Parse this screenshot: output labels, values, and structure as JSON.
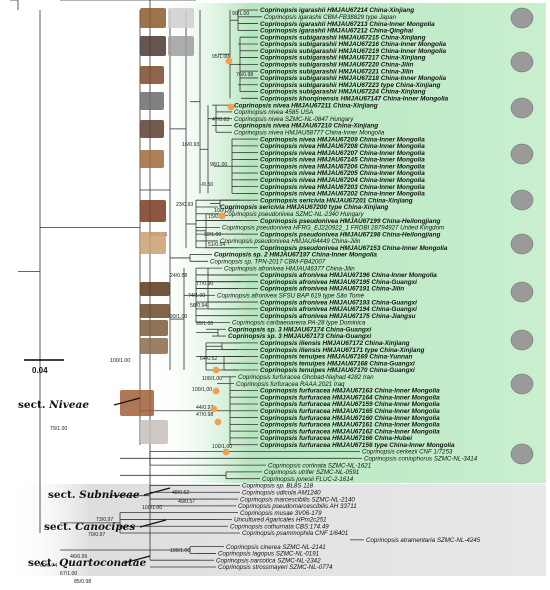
{
  "figure": {
    "scale_bar_label": "0.04",
    "colors": {
      "niveae_band": "#b8e6c0",
      "niveae_band_edge": "#d6f2dc",
      "grey_band": "#dcdcdc",
      "node_marker": "#f0a050",
      "branch": "#333333"
    },
    "sections": [
      {
        "prefix": "sect. ",
        "name": "Niveae"
      },
      {
        "prefix": "sect. ",
        "name": "Subniveae"
      },
      {
        "prefix": "sect. ",
        "name": "Canocipes"
      },
      {
        "prefix": "sect. ",
        "name": "Quartoconatae"
      }
    ],
    "taxa": [
      {
        "label": "Coprinopsis igarashii HMJAU67214 China-Xinjiang",
        "bold": true
      },
      {
        "label": "Coprinopsis igarashii CBM-FB38829 type Japan",
        "bold": false
      },
      {
        "label": "Coprinopsis igarashii HMJAU67213 China-Inner Mongolia",
        "bold": true
      },
      {
        "label": "Coprinopsis igarashii HMJAU67212 China-Qinghai",
        "bold": true
      },
      {
        "label": "Coprinopsis subigarashii HMJAU67215 China-Xinjiang",
        "bold": true
      },
      {
        "label": "Coprinopsis subigarashii HMJAU67216 China-Inner Mongolia",
        "bold": true
      },
      {
        "label": "Coprinopsis subigarashii HMJAU67219 China-Inner Mongolia",
        "bold": true
      },
      {
        "label": "Coprinopsis subigarashii HMJAU67217 China-Xinjiang",
        "bold": true
      },
      {
        "label": "Coprinopsis subigarashii HMJAU67220 China-Jilin",
        "bold": true
      },
      {
        "label": "Coprinopsis subigarashii HMJAU67221 China-Jilin",
        "bold": true
      },
      {
        "label": "Coprinopsis subigarashii HMJAU67218 China-Inner Mongolia",
        "bold": true
      },
      {
        "label": "Coprinopsis subigarashii HMJAU67223 type China-Xinjiang",
        "bold": true
      },
      {
        "label": "Coprinopsis subigarashii HMJAU67224 China-Xinjiang",
        "bold": true
      },
      {
        "label": "Coprinopsis khorqinensis HMJAU67147 China-Inner Mongolia",
        "bold": true
      },
      {
        "label": "Coprinopsis nivea HMJAU67211 China-Xinjiang",
        "bold": true
      },
      {
        "label": "Coprinopsis nivea 4585 USA",
        "bold": false
      },
      {
        "label": "Coprinopsis nivea SZMC-NL-0847 Hungary",
        "bold": false
      },
      {
        "label": "Coprinopsis nivea HMJAU67210 China-Xinjiang",
        "bold": true
      },
      {
        "label": "Coprinopsis nivea HMJAU58777 China-Inner Mongolia",
        "bold": false
      },
      {
        "label": "Coprinopsis nivea HMJAU67209 China-Inner Mongolia",
        "bold": true
      },
      {
        "label": "Coprinopsis nivea HMJAU67208 China-Inner Mongolia",
        "bold": true
      },
      {
        "label": "Coprinopsis nivea HMJAU67207 China-Inner Mongolia",
        "bold": true
      },
      {
        "label": "Coprinopsis nivea HMJAU67145 China-Inner Mongolia",
        "bold": true
      },
      {
        "label": "Coprinopsis nivea HMJAU67206 China-Inner Mongolia",
        "bold": true
      },
      {
        "label": "Coprinopsis nivea HMJAU67205 China-Inner Mongolia",
        "bold": true
      },
      {
        "label": "Coprinopsis nivea HMJAU67204 China-Inner Mongolia",
        "bold": true
      },
      {
        "label": "Coprinopsis nivea HMJAU67203 China-Inner Mongolia",
        "bold": true
      },
      {
        "label": "Coprinopsis nivea HMJAU67202 China-Inner Mongolia",
        "bold": true
      },
      {
        "label": "Coprinopsis sericivia HNJAU67201 China-Xinjiang",
        "bold": true
      },
      {
        "label": "Coprinopsis sericivia HMJAU67200 type China-Xinjiang",
        "bold": true
      },
      {
        "label": "Coprinopsis pseudonivea SZMC-NL-2340 Hungary",
        "bold": false
      },
      {
        "label": "Coprinopsis pseudonivea HMJAU67199 China-Heilongjiang",
        "bold": true
      },
      {
        "label": "Coprinopsis pseudonivea HFRG_EJ220922_1 FRDBI 28794927 United Kingdom",
        "bold": false
      },
      {
        "label": "Coprinopsis pseudonivea HMJAU67198 China-Heilongjiang",
        "bold": true
      },
      {
        "label": "Coprinopsis pseudonivea HMJAU64449 China-Jilin",
        "bold": false
      },
      {
        "label": "Coprinopsis pseudonivea HMJAU67153 China-Inner Mongolia",
        "bold": true
      },
      {
        "label": "Coprinopsis sp. 2 HMJAU67197 China-Inner Mongolia",
        "bold": true
      },
      {
        "label": "Coprinopsis sp. TPN-2017 CBM-FB42007",
        "bold": false
      },
      {
        "label": "Coprinopsis afronivea HMJAU46377 China-Jilin",
        "bold": false
      },
      {
        "label": "Coprinopsis afronivea HMJAU67196 China-Inner Mongolia",
        "bold": true
      },
      {
        "label": "Coprinopsis afronivea HMJAU67195 China-Guangxi",
        "bold": true
      },
      {
        "label": "Coprinopsis afronivea HMJAU67191 China-Jilin",
        "bold": true
      },
      {
        "label": "Coprinopsis afronivea SFSU BAP 619 type São Tomé",
        "bold": false
      },
      {
        "label": "Coprinopsis afronivea HMJAU67193 China-Guangxi",
        "bold": true
      },
      {
        "label": "Coprinopsis afronivea HMJAU67194 China-Guangxi",
        "bold": true
      },
      {
        "label": "Coprinopsis afronivea HMJAU67175 China-Jiangsu",
        "bold": true
      },
      {
        "label": "Coprinopsis caribaeoarena PA-28 type Dominica",
        "bold": false
      },
      {
        "label": "Coprinopsis sp. 3 HMJAU67174 China-Guangxi",
        "bold": true
      },
      {
        "label": "Coprinopsis sp. 3 HMJAU67173 China-Guangxi",
        "bold": true
      },
      {
        "label": "Coprinopsis iliensis HMJAU67172 China-Xinjiang",
        "bold": true
      },
      {
        "label": "Coprinopsis iliensis HMJAU67171 type China-Xinjiang",
        "bold": true
      },
      {
        "label": "Coprinopsis tenuipes HMJAU67169 China-Yunnan",
        "bold": true
      },
      {
        "label": "Coprinopsis tenuipes HMJAU67168 China-Guangxi",
        "bold": true
      },
      {
        "label": "Coprinopsis tenuipes HMJAU67170 China-Guangxi",
        "bold": true
      },
      {
        "label": "Coprinopsis furfuracea Ghobad-Nejhad 4282 Iran",
        "bold": false
      },
      {
        "label": "Coprinopsis furfuracea RAAA 2021 Iraq",
        "bold": false
      },
      {
        "label": "Coprinopsis furfuracea HMJAU67163 China-Inner Mongolia",
        "bold": true
      },
      {
        "label": "Coprinopsis furfuracea HMJAU67164 China-Inner Mongolia",
        "bold": true
      },
      {
        "label": "Coprinopsis furfuracea HMJAU67159 China-Inner Mongolia",
        "bold": true
      },
      {
        "label": "Coprinopsis furfuracea HMJAU67165 China-Inner Mongolia",
        "bold": true
      },
      {
        "label": "Coprinopsis furfuracea HMJAU67160 China-Inner Mongolia",
        "bold": true
      },
      {
        "label": "Coprinopsis furfuracea HMJAU67161 China-Inner Mongolia",
        "bold": true
      },
      {
        "label": "Coprinopsis furfuracea HMJAU67162 China-Inner Mongolia",
        "bold": true
      },
      {
        "label": "Coprinopsis furfuracea HMJAU67166 China-Hubei",
        "bold": true
      },
      {
        "label": "Coprinopsis furfuracea HMJAU67156 type China-Inner Mongolia",
        "bold": true
      },
      {
        "label": "Coprinopsis cerkezii CNF 1/7253",
        "bold": false
      },
      {
        "label": "Coprinopsis coniophorus SZMC-NL-3414",
        "bold": false
      },
      {
        "label": "Coprinopsis cortinata SZMC-NL-1621",
        "bold": false
      },
      {
        "label": "Coprinopsis utrifer SZMC-NL-0591",
        "bold": false
      },
      {
        "label": "Coprinopsis jonesii FLUC-2-1614",
        "bold": false
      },
      {
        "label": "Coprinopsis sp. BL8S 118",
        "bold": false
      },
      {
        "label": "Coprinopsis udicola AM1240",
        "bold": false
      },
      {
        "label": "Coprinopsis marcescibilis SZMC-NL-2140",
        "bold": false
      },
      {
        "label": "Coprinopsis pseudomarcescibilis AH 33711",
        "bold": false
      },
      {
        "label": "Coprinopsis musae 3V06-179",
        "bold": false
      },
      {
        "label": "Uncultured Agaricales HPm2c251",
        "bold": false
      },
      {
        "label": "Coprinopsis cothurnata CBS:174.49",
        "bold": false
      },
      {
        "label": "Coprinopsis psammophila CNF 1/6401",
        "bold": false
      },
      {
        "label": "Coprinopsis atramentaria SZMC-NL-4245",
        "bold": false
      },
      {
        "label": "Coprinopsis cinerea SZMC-NL-2141",
        "bold": false
      },
      {
        "label": "Coprinopsis lagopus SZMC-NL-0191",
        "bold": false
      },
      {
        "label": "Coprinopsis narcotica SZMC-NL-2342",
        "bold": false
      },
      {
        "label": "Coprinopsis strossmayeri SZMC-NL-0774",
        "bold": false
      }
    ],
    "support_values": [
      "90/1.00",
      "95/1.00",
      "76/0.98",
      "47/0.63",
      "16/0.93",
      "98/1.00",
      "-/0.50",
      "15/0.96",
      "23/0.93",
      "100/1.00",
      "32/1.00",
      "51/0.54",
      "30/0.55",
      "24/0.58",
      "77/0.90",
      "74/1.00",
      "58/0.94",
      "99/1.00",
      "99/1.00",
      "64/0.52",
      "100/1.00",
      "100/1.00",
      "44/0.97",
      "47/0.98",
      "100/1.00",
      "100/1.00",
      "79/1.00",
      "48/0.52",
      "49/0.57",
      "100/1.00",
      "73/0.97",
      "70/0.97",
      "100/1.00",
      "46/0.99",
      "69/0.74",
      "67/1.00",
      "85/0.98"
    ]
  }
}
